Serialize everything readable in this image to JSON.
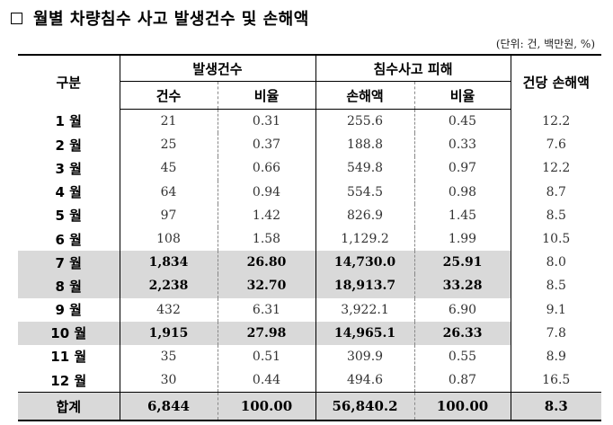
{
  "title": "월별 차량침수 사고 발생건수 및 손해액",
  "unit_note": "(단위: 건, 백만원, %)",
  "header": {
    "category": "구분",
    "group_occurrence": "발생건수",
    "group_damage": "침수사고 피해",
    "avg_loss": "건당 손해액",
    "count": "건수",
    "ratio": "비율",
    "loss": "손해액",
    "loss_ratio": "비율"
  },
  "rows": [
    {
      "month": "1 월",
      "count": "21",
      "ratio": "0.31",
      "loss": "255.6",
      "loss_ratio": "0.45",
      "avg": "12.2"
    },
    {
      "month": "2 월",
      "count": "25",
      "ratio": "0.37",
      "loss": "188.8",
      "loss_ratio": "0.33",
      "avg": "7.6"
    },
    {
      "month": "3 월",
      "count": "45",
      "ratio": "0.66",
      "loss": "549.8",
      "loss_ratio": "0.97",
      "avg": "12.2"
    },
    {
      "month": "4 월",
      "count": "64",
      "ratio": "0.94",
      "loss": "554.5",
      "loss_ratio": "0.98",
      "avg": "8.7"
    },
    {
      "month": "5 월",
      "count": "97",
      "ratio": "1.42",
      "loss": "826.9",
      "loss_ratio": "1.45",
      "avg": "8.5"
    },
    {
      "month": "6 월",
      "count": "108",
      "ratio": "1.58",
      "loss": "1,129.2",
      "loss_ratio": "1.99",
      "avg": "10.5"
    },
    {
      "month": "7 월",
      "count": "1,834",
      "ratio": "26.80",
      "loss": "14,730.0",
      "loss_ratio": "25.91",
      "avg": "8.0"
    },
    {
      "month": "8 월",
      "count": "2,238",
      "ratio": "32.70",
      "loss": "18,913.7",
      "loss_ratio": "33.28",
      "avg": "8.5"
    },
    {
      "month": "9 월",
      "count": "432",
      "ratio": "6.31",
      "loss": "3,922.1",
      "loss_ratio": "6.90",
      "avg": "9.1"
    },
    {
      "month": "10 월",
      "count": "1,915",
      "ratio": "27.98",
      "loss": "14,965.1",
      "loss_ratio": "26.33",
      "avg": "7.8"
    },
    {
      "month": "11 월",
      "count": "35",
      "ratio": "0.51",
      "loss": "309.9",
      "loss_ratio": "0.55",
      "avg": "8.9"
    },
    {
      "month": "12 월",
      "count": "30",
      "ratio": "0.44",
      "loss": "494.6",
      "loss_ratio": "0.87",
      "avg": "16.5"
    }
  ],
  "total": {
    "month": "합계",
    "count": "6,844",
    "ratio": "100.00",
    "loss": "56,840.2",
    "loss_ratio": "100.00",
    "avg": "8.3"
  }
}
